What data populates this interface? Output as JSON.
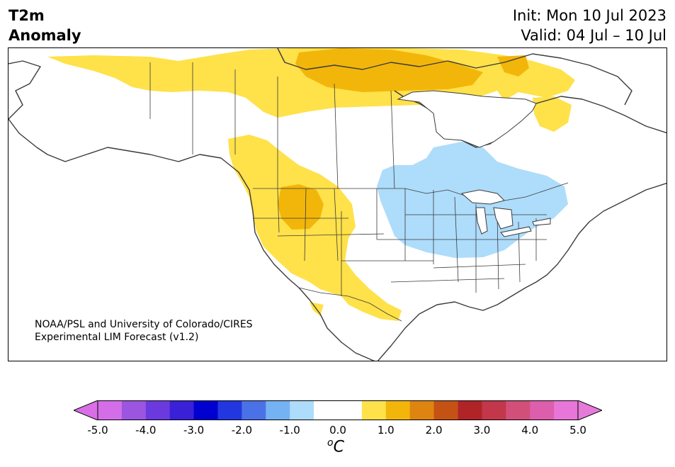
{
  "header": {
    "title_line1": "T2m",
    "title_line2": "Anomaly",
    "init": "Init: Mon 10 Jul 2023",
    "valid": "Valid: 04 Jul – 10 Jul"
  },
  "credit": {
    "line1": "NOAA/PSL and University of Colorado/CIRES",
    "line2": "Experimental LIM Forecast (v1.2)"
  },
  "colorbar": {
    "ticks": [
      "-5.0",
      "-4.0",
      "-3.0",
      "-2.0",
      "-1.0",
      "0.0",
      "1.0",
      "2.0",
      "3.0",
      "4.0",
      "5.0"
    ],
    "under_color": "#d96ee6",
    "over_color": "#e67ad9",
    "colors": [
      "#d46ee8",
      "#9b55e0",
      "#6b3ade",
      "#3a20d6",
      "#0000d0",
      "#2237e0",
      "#4a72e6",
      "#74b2f3",
      "#aedcfb",
      "#ffffff",
      "#ffffff",
      "#ffe14a",
      "#f2b60a",
      "#de8410",
      "#c55215",
      "#b02428",
      "#c2374a",
      "#d24f7a",
      "#dc5eac",
      "#e876d8"
    ],
    "unit_base": "o",
    "unit_main": "C"
  },
  "map": {
    "warm_color": "#ffe14a",
    "warmer_color": "#f2b60a",
    "cool_color": "#aedcfb",
    "coast_color": "#3a3a3a"
  }
}
